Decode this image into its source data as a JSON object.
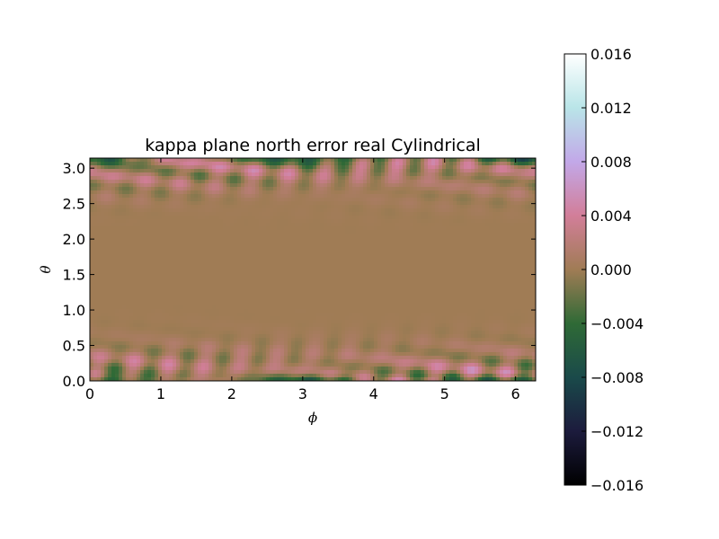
{
  "chart_data": {
    "type": "heatmap",
    "title": "kappa plane north error real Cylindrical",
    "xlabel": "ϕ",
    "ylabel": "θ",
    "xlim": [
      0,
      6.2832
    ],
    "ylim": [
      0,
      3.1416
    ],
    "x_ticks": [
      "0",
      "1",
      "2",
      "3",
      "4",
      "5",
      "6"
    ],
    "y_ticks": [
      "0.0",
      "0.5",
      "1.0",
      "1.5",
      "2.0",
      "2.5",
      "3.0"
    ],
    "colorbar": {
      "vmin": -0.016,
      "vmax": 0.016,
      "ticks": [
        "−0.016",
        "−0.012",
        "−0.008",
        "−0.004",
        "0.000",
        "0.004",
        "0.008",
        "0.012",
        "0.016"
      ],
      "colormap": "cubehelix",
      "colors": [
        "#000000",
        "#1c1b3d",
        "#1a4a4a",
        "#2f6a36",
        "#a07c55",
        "#d27e99",
        "#c2a8e8",
        "#b9e5e8",
        "#ffffff"
      ]
    },
    "grid": false,
    "field_description": "Error near 0 across the band θ≈0.7–2.4 (brown); oscillatory pink/green ripples near θ≈0 and θ≈π with amplitude up to about ±0.008"
  }
}
